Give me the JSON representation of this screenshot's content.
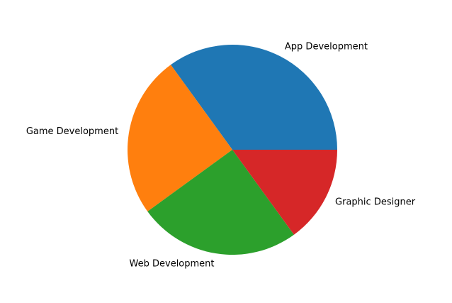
{
  "chart_data": {
    "type": "pie",
    "title": "",
    "slices": [
      {
        "label": "App Development",
        "value": 35,
        "color": "#1f77b4"
      },
      {
        "label": "Game Development",
        "value": 25,
        "color": "#ff7f0e"
      },
      {
        "label": "Web Development",
        "value": 25,
        "color": "#2ca02c"
      },
      {
        "label": "Graphic Designer",
        "value": 15,
        "color": "#d62728"
      }
    ],
    "start_angle_deg": 0,
    "direction": "counterclockwise",
    "legend": "none"
  }
}
